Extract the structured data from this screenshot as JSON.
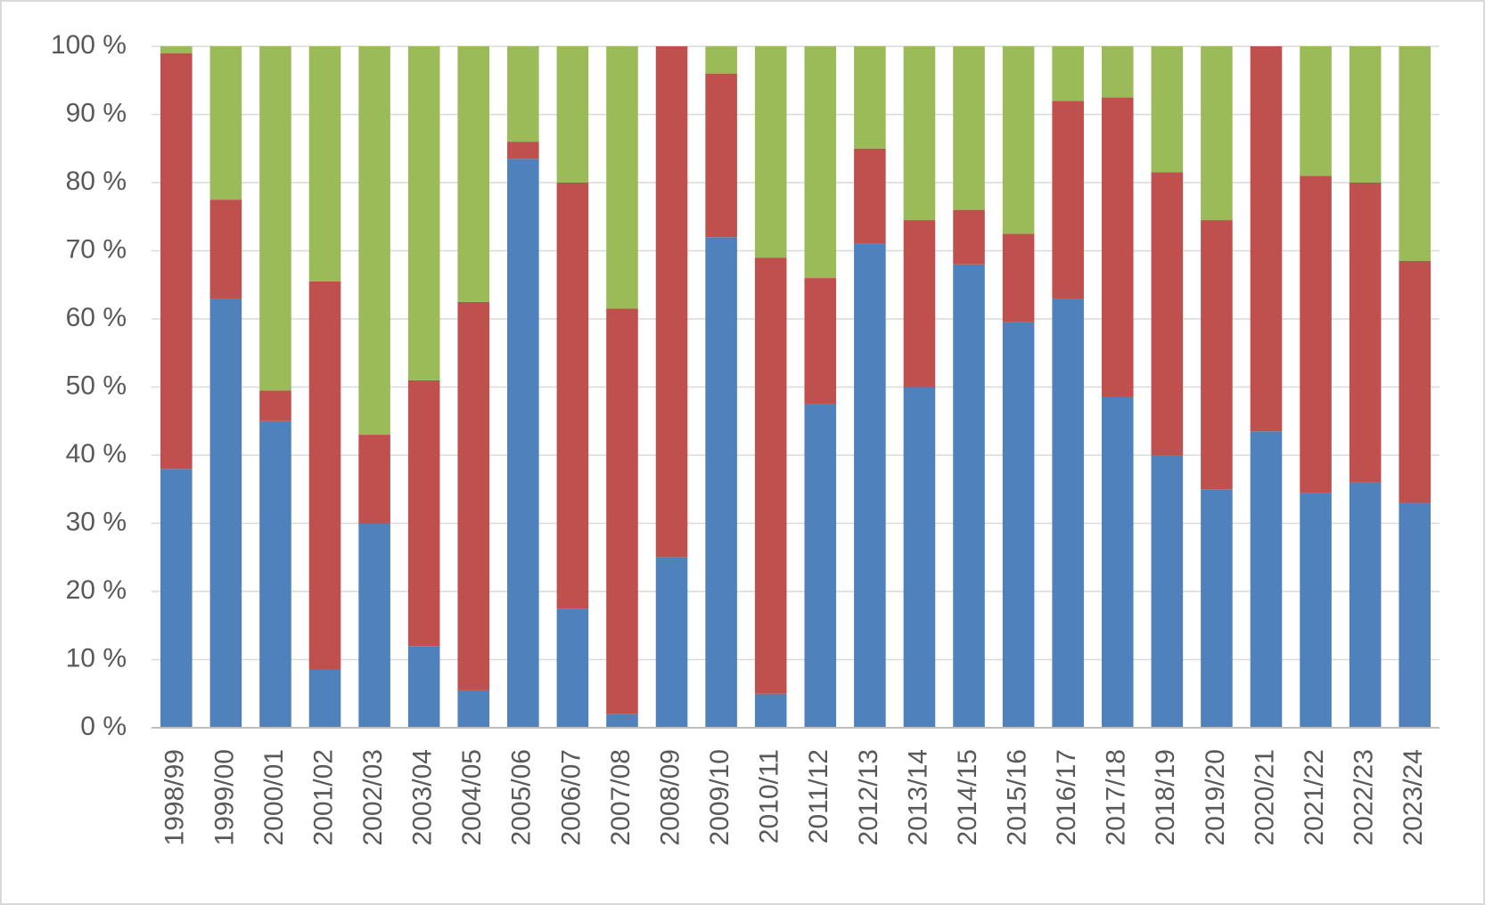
{
  "chart_data": {
    "type": "stacked-bar",
    "categories": [
      "1998/99",
      "1999/00",
      "2000/01",
      "2001/02",
      "2002/03",
      "2003/04",
      "2004/05",
      "2005/06",
      "2006/07",
      "2007/08",
      "2008/09",
      "2009/10",
      "2010/11",
      "2011/12",
      "2012/13",
      "2013/14",
      "2014/15",
      "2015/16",
      "2016/17",
      "2017/18",
      "2018/19",
      "2019/20",
      "2020/21",
      "2021/22",
      "2022/23",
      "2023/24"
    ],
    "series": [
      {
        "color": "#4f81bd",
        "values": [
          38,
          63,
          45,
          8.5,
          30,
          12,
          5.5,
          83.5,
          17.5,
          2,
          25,
          72,
          5,
          47.5,
          71,
          50,
          68,
          59.5,
          63,
          48.5,
          40,
          35,
          43.5,
          34.5,
          36,
          33
        ]
      },
      {
        "color": "#c0504d",
        "values": [
          61,
          14.5,
          4.5,
          57,
          13,
          39,
          57,
          2.5,
          62.5,
          59.5,
          75,
          24,
          64,
          18.5,
          14,
          24.5,
          8,
          13,
          29,
          44,
          41.5,
          39.5,
          56.5,
          46.5,
          44,
          35.5
        ]
      },
      {
        "color": "#9bbb59",
        "values": [
          1,
          22.5,
          50.5,
          34.5,
          57,
          49,
          37.5,
          14,
          20,
          38.5,
          0,
          4,
          31,
          34,
          15,
          25.5,
          24,
          27.5,
          8,
          7.5,
          18.5,
          25.5,
          0,
          19,
          20,
          31.5
        ]
      }
    ],
    "ylim": [
      0,
      100
    ],
    "yticks": [
      {
        "value": 0,
        "label": "0 %"
      },
      {
        "value": 10,
        "label": "10 %"
      },
      {
        "value": 20,
        "label": "20 %"
      },
      {
        "value": 30,
        "label": "30 %"
      },
      {
        "value": 40,
        "label": "40 %"
      },
      {
        "value": 50,
        "label": "50 %"
      },
      {
        "value": 60,
        "label": "60 %"
      },
      {
        "value": 70,
        "label": "70 %"
      },
      {
        "value": 80,
        "label": "80 %"
      },
      {
        "value": 90,
        "label": "90 %"
      },
      {
        "value": 100,
        "label": "100 %"
      }
    ],
    "grid": true
  }
}
